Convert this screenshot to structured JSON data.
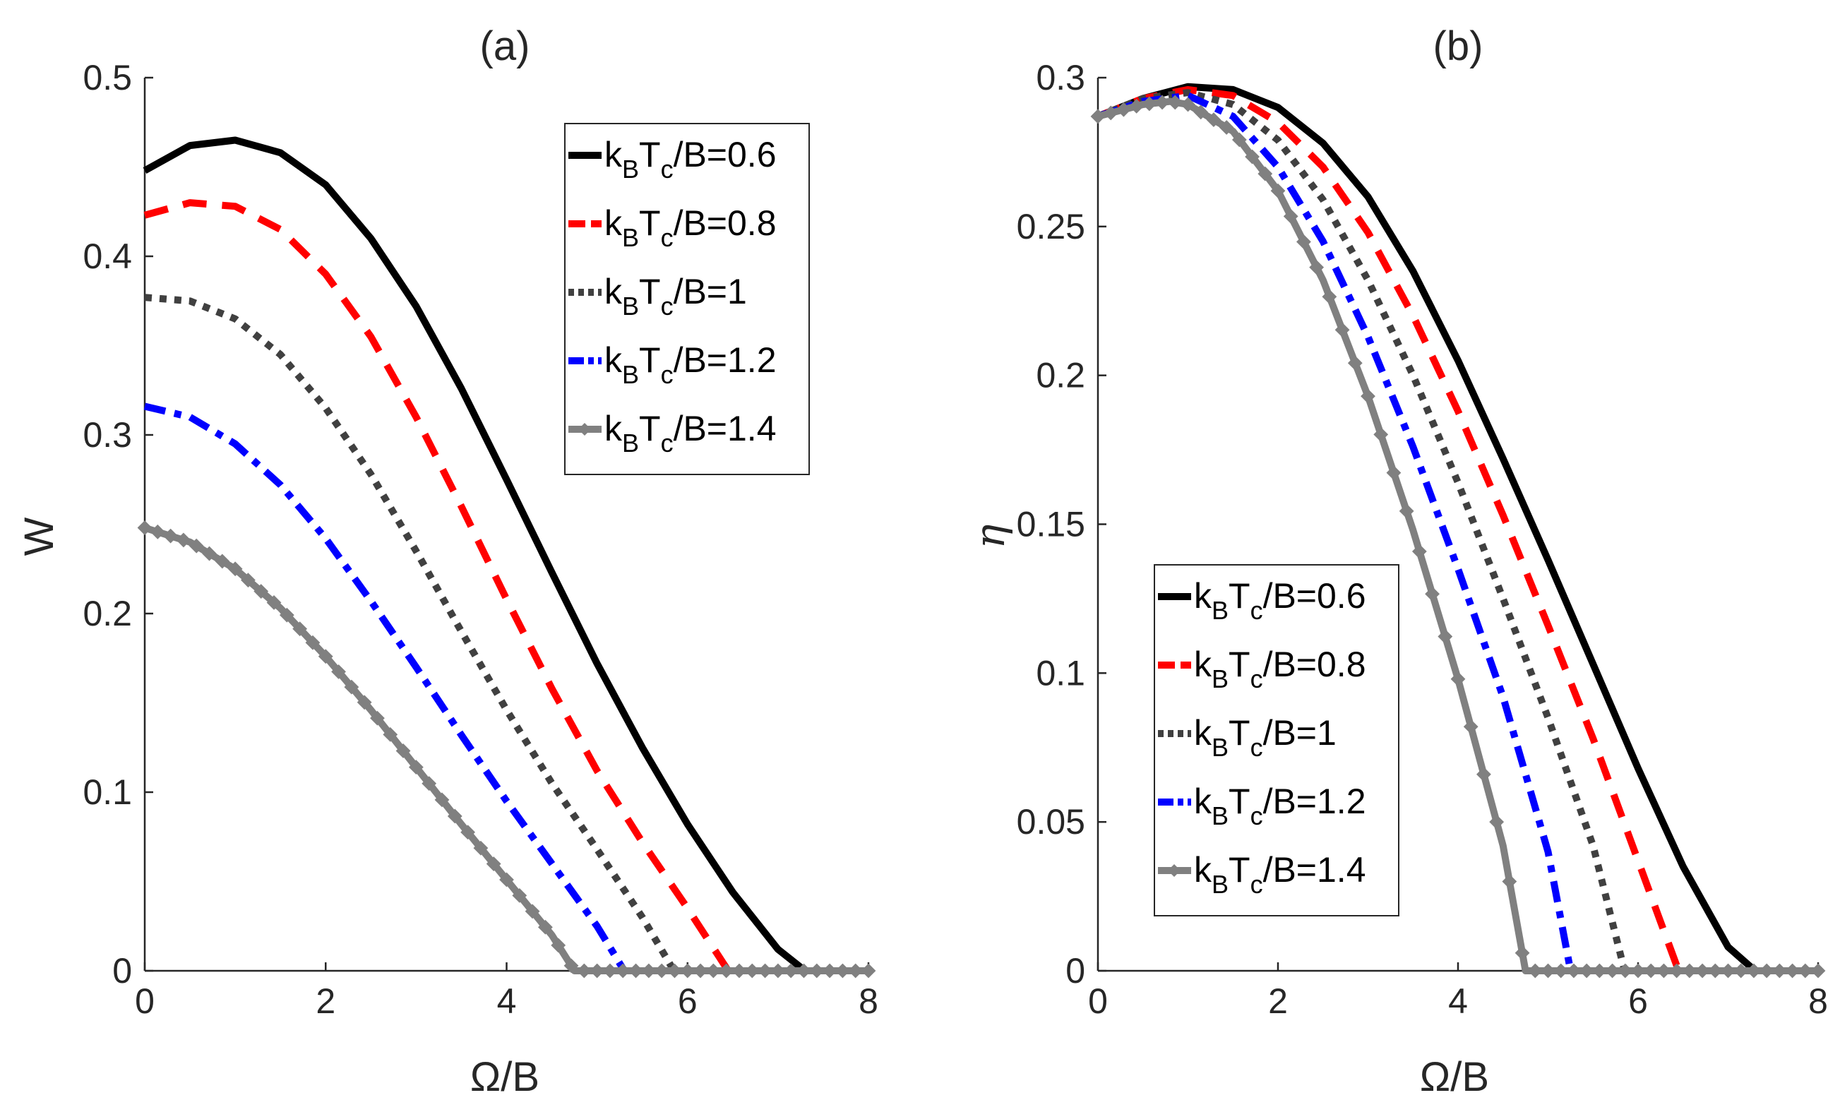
{
  "figure": {
    "series_styles": [
      {
        "key": "t06",
        "color": "#000000",
        "dash": "solid",
        "marker": false
      },
      {
        "key": "t08",
        "color": "#ff0000",
        "dash": "dashed",
        "marker": false
      },
      {
        "key": "t10",
        "color": "#404040",
        "dash": "dotted",
        "marker": false
      },
      {
        "key": "t12",
        "color": "#0000ff",
        "dash": "dashdot",
        "marker": false
      },
      {
        "key": "t14",
        "color": "#808080",
        "dash": "solid",
        "marker": "diamond"
      }
    ],
    "legend_entries": [
      {
        "k": "k",
        "sub1": "B",
        "t": "T",
        "sub2": "c",
        "rest": "/B=0.6"
      },
      {
        "k": "k",
        "sub1": "B",
        "t": "T",
        "sub2": "c",
        "rest": "/B=0.8"
      },
      {
        "k": "k",
        "sub1": "B",
        "t": "T",
        "sub2": "c",
        "rest": "/B=1"
      },
      {
        "k": "k",
        "sub1": "B",
        "t": "T",
        "sub2": "c",
        "rest": "/B=1.2"
      },
      {
        "k": "k",
        "sub1": "B",
        "t": "T",
        "sub2": "c",
        "rest": "/B=1.4"
      }
    ]
  },
  "chart_data": [
    {
      "type": "line",
      "title": "(a)",
      "xlabel": "Ω/B",
      "ylabel": "W",
      "xlim": [
        0,
        8
      ],
      "ylim": [
        0,
        0.5
      ],
      "xticks": [
        "0",
        "2",
        "4",
        "6",
        "8"
      ],
      "yticks": [
        "0",
        "0.1",
        "0.2",
        "0.3",
        "0.4",
        "0.5"
      ],
      "legend_position": "top-right",
      "series": [
        {
          "name": "kBTc/B=0.6",
          "x": [
            0,
            0.5,
            1,
            1.5,
            2,
            2.5,
            3,
            3.5,
            4,
            4.5,
            5,
            5.5,
            6,
            6.5,
            7,
            7.3,
            8
          ],
          "values": [
            0.448,
            0.462,
            0.465,
            0.458,
            0.44,
            0.41,
            0.372,
            0.326,
            0.275,
            0.223,
            0.172,
            0.125,
            0.082,
            0.044,
            0.012,
            0,
            0
          ]
        },
        {
          "name": "kBTc/B=0.8",
          "x": [
            0,
            0.5,
            1,
            1.5,
            2,
            2.5,
            3,
            3.5,
            4,
            4.5,
            5,
            5.5,
            6,
            6.45,
            8
          ],
          "values": [
            0.423,
            0.43,
            0.428,
            0.415,
            0.39,
            0.355,
            0.31,
            0.26,
            0.208,
            0.158,
            0.112,
            0.072,
            0.035,
            0,
            0
          ]
        },
        {
          "name": "kBTc/B=1",
          "x": [
            0,
            0.5,
            1,
            1.5,
            2,
            2.5,
            3,
            3.5,
            4,
            4.5,
            5,
            5.5,
            5.85,
            8
          ],
          "values": [
            0.377,
            0.375,
            0.365,
            0.345,
            0.315,
            0.278,
            0.235,
            0.19,
            0.146,
            0.105,
            0.068,
            0.03,
            0,
            0
          ]
        },
        {
          "name": "kBTc/B=1.2",
          "x": [
            0,
            0.5,
            1,
            1.5,
            2,
            2.5,
            3,
            3.5,
            4,
            4.5,
            5,
            5.3,
            8
          ],
          "values": [
            0.316,
            0.31,
            0.295,
            0.272,
            0.242,
            0.207,
            0.17,
            0.132,
            0.095,
            0.06,
            0.025,
            0,
            0
          ]
        },
        {
          "name": "kBTc/B=1.4",
          "x": [
            0,
            0.5,
            1,
            1.5,
            2,
            2.5,
            3,
            3.5,
            4,
            4.5,
            4.75,
            8
          ],
          "values": [
            0.248,
            0.24,
            0.225,
            0.203,
            0.176,
            0.146,
            0.114,
            0.082,
            0.051,
            0.02,
            0,
            0
          ]
        }
      ]
    },
    {
      "type": "line",
      "title": "(b)",
      "xlabel": "Ω/B",
      "ylabel": "η",
      "xlim": [
        0,
        8
      ],
      "ylim": [
        0,
        0.3
      ],
      "xticks": [
        "0",
        "2",
        "4",
        "6",
        "8"
      ],
      "yticks": [
        "0",
        "0.05",
        "0.1",
        "0.15",
        "0.2",
        "0.25",
        "0.3"
      ],
      "legend_position": "bottom-left",
      "series": [
        {
          "name": "kBTc/B=0.6",
          "x": [
            0,
            0.5,
            1,
            1.5,
            2,
            2.5,
            3,
            3.5,
            4,
            4.5,
            5,
            5.5,
            6,
            6.5,
            7,
            7.3,
            8
          ],
          "values": [
            0.287,
            0.293,
            0.297,
            0.296,
            0.29,
            0.278,
            0.26,
            0.235,
            0.205,
            0.172,
            0.138,
            0.103,
            0.068,
            0.035,
            0.008,
            0,
            0
          ]
        },
        {
          "name": "kBTc/B=0.8",
          "x": [
            0,
            0.5,
            1,
            1.5,
            2,
            2.5,
            3,
            3.5,
            4,
            4.5,
            5,
            5.5,
            6,
            6.45,
            8
          ],
          "values": [
            0.287,
            0.293,
            0.296,
            0.294,
            0.285,
            0.27,
            0.248,
            0.22,
            0.188,
            0.153,
            0.116,
            0.078,
            0.037,
            0,
            0
          ]
        },
        {
          "name": "kBTc/B=1",
          "x": [
            0,
            0.5,
            1,
            1.5,
            2,
            2.5,
            3,
            3.5,
            4,
            4.5,
            5,
            5.5,
            5.85,
            8
          ],
          "values": [
            0.287,
            0.293,
            0.295,
            0.291,
            0.279,
            0.259,
            0.232,
            0.2,
            0.164,
            0.125,
            0.085,
            0.042,
            0,
            0
          ]
        },
        {
          "name": "kBTc/B=1.2",
          "x": [
            0,
            0.5,
            1,
            1.5,
            2,
            2.5,
            3,
            3.5,
            4,
            4.5,
            5,
            5.25,
            8
          ],
          "values": [
            0.287,
            0.292,
            0.294,
            0.287,
            0.27,
            0.245,
            0.213,
            0.176,
            0.135,
            0.092,
            0.04,
            0,
            0
          ]
        },
        {
          "name": "kBTc/B=1.4",
          "x": [
            0,
            0.5,
            0.8,
            1,
            1.5,
            2,
            2.5,
            3,
            3.5,
            4,
            4.5,
            4.75,
            8
          ],
          "values": [
            0.287,
            0.291,
            0.292,
            0.291,
            0.282,
            0.262,
            0.232,
            0.193,
            0.148,
            0.098,
            0.042,
            0,
            0
          ]
        }
      ]
    }
  ]
}
